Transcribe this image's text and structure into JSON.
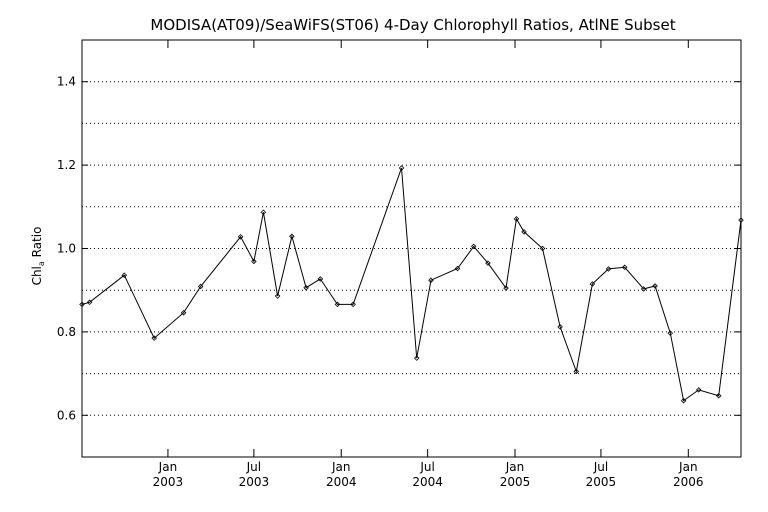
{
  "chart_data": {
    "type": "line",
    "title": "MODISA(AT09)/SeaWiFS(ST06) 4-Day Chlorophyll Ratios, AtlNE Subset",
    "xlabel": "",
    "ylabel": "Chl",
    "ylabel_subscript": "a",
    "ylabel_suffix": " Ratio",
    "ylim": [
      0.5,
      1.5
    ],
    "yticks": [
      0.6,
      0.8,
      1.0,
      1.2,
      1.4
    ],
    "ytick_labels": [
      "0.6",
      "0.8",
      "1.0",
      "1.2",
      "1.4"
    ],
    "grid": "horizontal dotted",
    "xlim": [
      "2002-07-04",
      "2006-04-22"
    ],
    "xticks": [
      {
        "date": "2003-01-01",
        "line1": "Jan",
        "line2": "2003"
      },
      {
        "date": "2003-07-01",
        "line1": "Jul",
        "line2": "2003"
      },
      {
        "date": "2004-01-01",
        "line1": "Jan",
        "line2": "2004"
      },
      {
        "date": "2004-07-01",
        "line1": "Jul",
        "line2": "2004"
      },
      {
        "date": "2005-01-01",
        "line1": "Jan",
        "line2": "2005"
      },
      {
        "date": "2005-07-01",
        "line1": "Jul",
        "line2": "2005"
      },
      {
        "date": "2006-01-01",
        "line1": "Jan",
        "line2": "2006"
      }
    ],
    "series": [
      {
        "points": [
          {
            "x": "2002-07-04",
            "y": 0.866
          },
          {
            "x": "2002-07-20",
            "y": 0.871
          },
          {
            "x": "2002-10-01",
            "y": 0.936
          },
          {
            "x": "2002-12-03",
            "y": 0.785
          },
          {
            "x": "2003-02-03",
            "y": 0.846
          },
          {
            "x": "2003-03-11",
            "y": 0.909
          },
          {
            "x": "2003-06-03",
            "y": 1.028
          },
          {
            "x": "2003-07-01",
            "y": 0.969
          },
          {
            "x": "2003-07-21",
            "y": 1.087
          },
          {
            "x": "2003-08-20",
            "y": 0.886
          },
          {
            "x": "2003-09-19",
            "y": 1.029
          },
          {
            "x": "2003-10-19",
            "y": 0.906
          },
          {
            "x": "2003-11-18",
            "y": 0.927
          },
          {
            "x": "2003-12-24",
            "y": 0.866
          },
          {
            "x": "2004-01-26",
            "y": 0.866
          },
          {
            "x": "2004-05-07",
            "y": 1.193
          },
          {
            "x": "2004-06-08",
            "y": 0.737
          },
          {
            "x": "2004-07-08",
            "y": 0.924
          },
          {
            "x": "2004-09-02",
            "y": 0.952
          },
          {
            "x": "2004-10-06",
            "y": 1.005
          },
          {
            "x": "2004-11-05",
            "y": 0.965
          },
          {
            "x": "2004-12-13",
            "y": 0.905
          },
          {
            "x": "2005-01-04",
            "y": 1.071
          },
          {
            "x": "2005-01-20",
            "y": 1.04
          },
          {
            "x": "2005-02-28",
            "y": 1.0
          },
          {
            "x": "2005-04-06",
            "y": 0.812
          },
          {
            "x": "2005-05-10",
            "y": 0.705
          },
          {
            "x": "2005-06-13",
            "y": 0.915
          },
          {
            "x": "2005-07-17",
            "y": 0.951
          },
          {
            "x": "2005-08-20",
            "y": 0.955
          },
          {
            "x": "2005-09-29",
            "y": 0.903
          },
          {
            "x": "2005-10-23",
            "y": 0.91
          },
          {
            "x": "2005-11-24",
            "y": 0.797
          },
          {
            "x": "2005-12-22",
            "y": 0.635
          },
          {
            "x": "2006-01-23",
            "y": 0.661
          },
          {
            "x": "2006-03-06",
            "y": 0.647
          },
          {
            "x": "2006-04-22",
            "y": 1.068
          }
        ]
      }
    ]
  }
}
